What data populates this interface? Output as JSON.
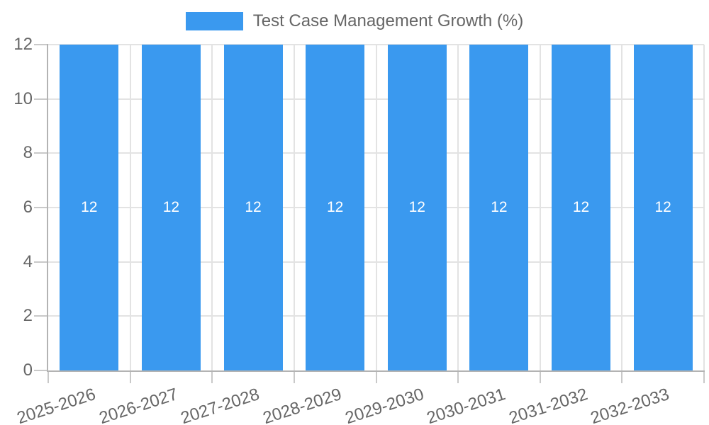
{
  "chart_data": {
    "type": "bar",
    "title": "Test Case Management Growth (%)",
    "categories": [
      "2025-2026",
      "2026-2027",
      "2027-2028",
      "2028-2029",
      "2029-2030",
      "2030-2031",
      "2031-2032",
      "2032-2033"
    ],
    "series": [
      {
        "name": "Test Case Management Growth (%)",
        "values": [
          12,
          12,
          12,
          12,
          12,
          12,
          12,
          12
        ]
      }
    ],
    "data_labels_shown": true,
    "xlabel": "",
    "ylabel": "",
    "ylim": [
      0,
      12
    ],
    "yticks": [
      0,
      2,
      4,
      6,
      8,
      10,
      12
    ],
    "grid": true,
    "legend_position": "top",
    "x_tick_rotation_deg": -18,
    "colors": {
      "bar": "#3A99EF",
      "grid": "#E3E3E3",
      "axis_border": "#B3B3B3",
      "tick_mark": "#C9C9C9",
      "tick_text": "#666666",
      "data_label": "#FFFFFF",
      "background": "#FFFFFF"
    }
  }
}
